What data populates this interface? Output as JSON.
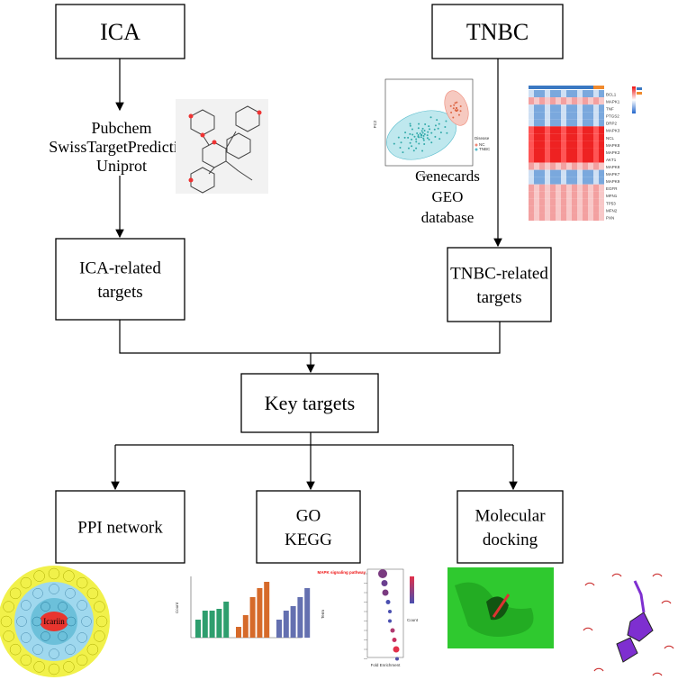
{
  "nodes": [
    {
      "label": "ICA"
    },
    {
      "label": "TNBC"
    },
    {
      "label": "ICA-related\ntargets"
    },
    {
      "label": "TNBC-related\ntargets"
    },
    {
      "label": "Key targets"
    },
    {
      "label": "PPI network"
    },
    {
      "label": "GO\nKEGG"
    },
    {
      "label": "Molecular\ndocking"
    }
  ],
  "sources": {
    "ica": [
      "Pubchem",
      "SwissTargetPrediction",
      "Uniprot"
    ],
    "tnbc": [
      "Genecards",
      "GEO",
      "database"
    ]
  },
  "figures": {
    "pca": {
      "x_label": "PC1",
      "y_label": "PC2",
      "legend_title": "Disease",
      "legend": [
        "NC",
        "TNBC"
      ]
    },
    "heatmap": {
      "genes": [
        "BCL1",
        "MAPK1",
        "TNF",
        "PTGS2",
        "DRP2",
        "MAPK3",
        "NCL",
        "MAPK8",
        "MAPK3",
        "AKT1",
        "MAPK8",
        "MAPK7",
        "MAPK9",
        "EGFR",
        "MFN1",
        "TP53",
        "MFN2",
        "PXN"
      ]
    },
    "ppi": {
      "center": "Icariin"
    },
    "go": {
      "y_label": "Count"
    },
    "kegg": {
      "x_label": "Fold Enrichment",
      "y_label": "Term",
      "highlight": "MAPK signaling pathway",
      "legend_title": "Count"
    }
  }
}
